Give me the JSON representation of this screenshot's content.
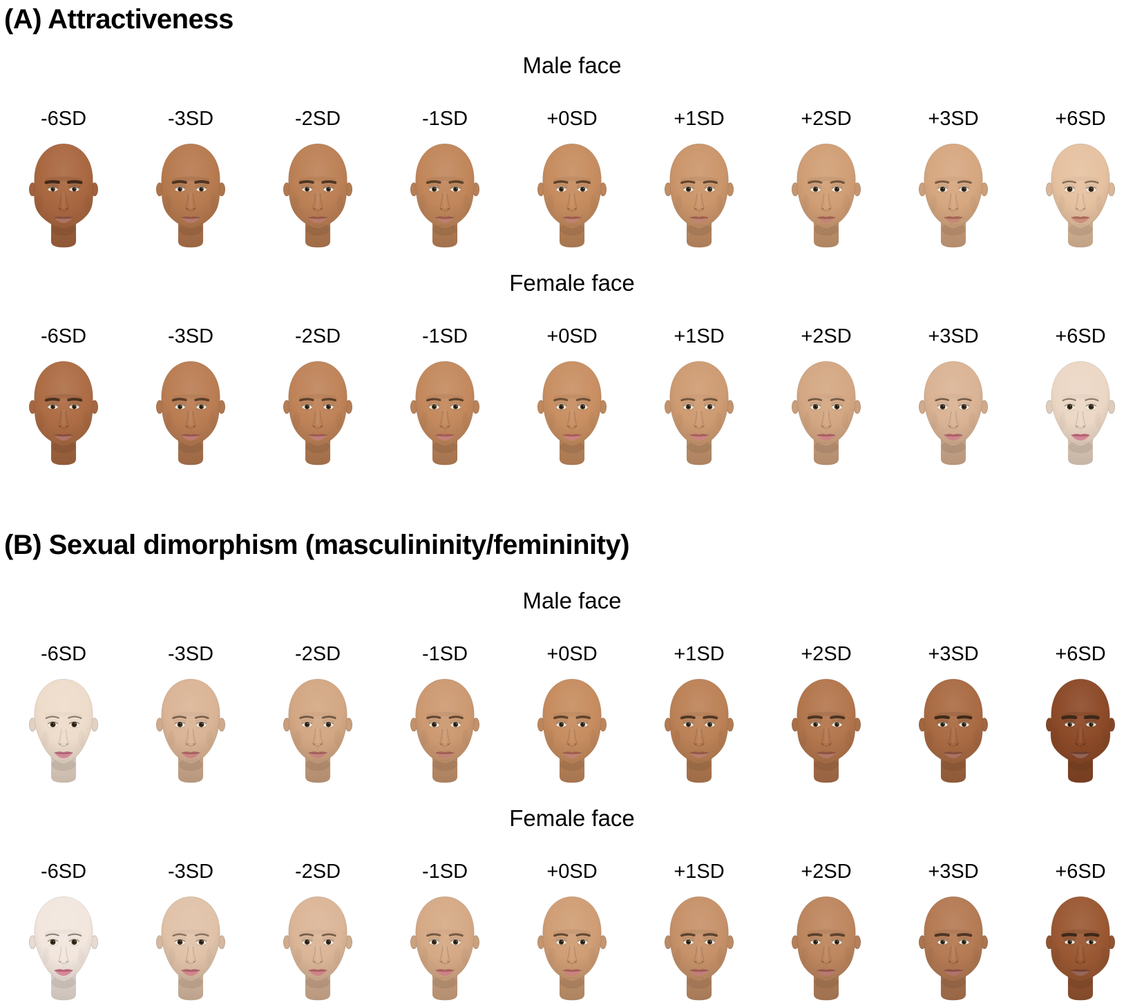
{
  "style": {
    "background": "#ffffff",
    "text_color": "#000000"
  },
  "panels": [
    {
      "id": "A",
      "title": "(A) Attractiveness",
      "rows": [
        {
          "header": "Male face",
          "faces": [
            {
              "label": "-6SD",
              "skin": "#a96740",
              "lip": "#9c5a49",
              "jaw": 0.95,
              "brow": 1.0,
              "eye": 0.25
            },
            {
              "label": "-3SD",
              "skin": "#b77a4f",
              "lip": "#a86250",
              "jaw": 0.8,
              "brow": 0.85,
              "eye": 0.38
            },
            {
              "label": "-2SD",
              "skin": "#bc8055",
              "lip": "#ac6451",
              "jaw": 0.72,
              "brow": 0.78,
              "eye": 0.44
            },
            {
              "label": "-1SD",
              "skin": "#c1865a",
              "lip": "#b06754",
              "jaw": 0.66,
              "brow": 0.7,
              "eye": 0.5
            },
            {
              "label": "+0SD",
              "skin": "#c68c5f",
              "lip": "#b46a56",
              "jaw": 0.6,
              "brow": 0.64,
              "eye": 0.56
            },
            {
              "label": "+1SD",
              "skin": "#cb956a",
              "lip": "#b66c58",
              "jaw": 0.54,
              "brow": 0.58,
              "eye": 0.62
            },
            {
              "label": "+2SD",
              "skin": "#d09e75",
              "lip": "#b96e5b",
              "jaw": 0.48,
              "brow": 0.52,
              "eye": 0.68
            },
            {
              "label": "+3SD",
              "skin": "#d6a780",
              "lip": "#bb715d",
              "jaw": 0.42,
              "brow": 0.46,
              "eye": 0.75
            },
            {
              "label": "+6SD",
              "skin": "#e5c1a0",
              "lip": "#c27864",
              "jaw": 0.28,
              "brow": 0.32,
              "eye": 0.95
            }
          ]
        },
        {
          "header": "Female face",
          "faces": [
            {
              "label": "-6SD",
              "skin": "#ad6c44",
              "lip": "#a05a4b",
              "jaw": 0.8,
              "brow": 0.85,
              "eye": 0.35
            },
            {
              "label": "-3SD",
              "skin": "#ba7d53",
              "lip": "#b06258",
              "jaw": 0.65,
              "brow": 0.72,
              "eye": 0.48
            },
            {
              "label": "-2SD",
              "skin": "#bf8358",
              "lip": "#b5655d",
              "jaw": 0.58,
              "brow": 0.65,
              "eye": 0.54
            },
            {
              "label": "-1SD",
              "skin": "#c3895d",
              "lip": "#ba6861",
              "jaw": 0.52,
              "brow": 0.58,
              "eye": 0.6
            },
            {
              "label": "+0SD",
              "skin": "#c88f62",
              "lip": "#c06b66",
              "jaw": 0.46,
              "brow": 0.52,
              "eye": 0.66
            },
            {
              "label": "+1SD",
              "skin": "#ce9b72",
              "lip": "#c26c6a",
              "jaw": 0.4,
              "brow": 0.46,
              "eye": 0.72
            },
            {
              "label": "+2SD",
              "skin": "#d4a783",
              "lip": "#c46c6e",
              "jaw": 0.35,
              "brow": 0.4,
              "eye": 0.78
            },
            {
              "label": "+3SD",
              "skin": "#dab394",
              "lip": "#c66d73",
              "jaw": 0.3,
              "brow": 0.34,
              "eye": 0.85
            },
            {
              "label": "+6SD",
              "skin": "#ecd7c5",
              "lip": "#cc6f80",
              "jaw": 0.18,
              "brow": 0.22,
              "eye": 1.05
            }
          ]
        }
      ]
    },
    {
      "id": "B",
      "title": "(B) Sexual dimorphism (masculininity/femininity)",
      "rows": [
        {
          "header": "Male face",
          "faces": [
            {
              "label": "-6SD",
              "skin": "#eedccb",
              "lip": "#cb7283",
              "jaw": 0.2,
              "brow": 0.2,
              "eye": 1.0
            },
            {
              "label": "-3SD",
              "skin": "#dab495",
              "lip": "#c06e6c",
              "jaw": 0.34,
              "brow": 0.34,
              "eye": 0.85
            },
            {
              "label": "-2SD",
              "skin": "#d3a783",
              "lip": "#bc6d65",
              "jaw": 0.44,
              "brow": 0.44,
              "eye": 0.75
            },
            {
              "label": "-1SD",
              "skin": "#cc9971",
              "lip": "#b86b5d",
              "jaw": 0.52,
              "brow": 0.54,
              "eye": 0.66
            },
            {
              "label": "+0SD",
              "skin": "#c68c5f",
              "lip": "#b46a56",
              "jaw": 0.6,
              "brow": 0.64,
              "eye": 0.58
            },
            {
              "label": "+1SD",
              "skin": "#bc8156",
              "lip": "#ab6450",
              "jaw": 0.7,
              "brow": 0.75,
              "eye": 0.52
            },
            {
              "label": "+2SD",
              "skin": "#b3764d",
              "lip": "#a15e4a",
              "jaw": 0.8,
              "brow": 0.85,
              "eye": 0.46
            },
            {
              "label": "+3SD",
              "skin": "#a96b43",
              "lip": "#985745",
              "jaw": 0.9,
              "brow": 0.95,
              "eye": 0.4
            },
            {
              "label": "+6SD",
              "skin": "#8c4a28",
              "lip": "#7c4534",
              "jaw": 1.05,
              "brow": 1.15,
              "eye": 0.28
            }
          ]
        },
        {
          "header": "Female face",
          "faces": [
            {
              "label": "-6SD",
              "skin": "#f2e6dd",
              "lip": "#cf7287",
              "jaw": 0.15,
              "brow": 0.18,
              "eye": 1.05
            },
            {
              "label": "-3SD",
              "skin": "#e0c2a8",
              "lip": "#c86e76",
              "jaw": 0.28,
              "brow": 0.3,
              "eye": 0.9
            },
            {
              "label": "-2SD",
              "skin": "#dbb597",
              "lip": "#c56d71",
              "jaw": 0.36,
              "brow": 0.4,
              "eye": 0.8
            },
            {
              "label": "-1SD",
              "skin": "#d5a985",
              "lip": "#c36c6c",
              "jaw": 0.44,
              "brow": 0.48,
              "eye": 0.72
            },
            {
              "label": "+0SD",
              "skin": "#cf9d74",
              "lip": "#c06b66",
              "jaw": 0.5,
              "brow": 0.55,
              "eye": 0.64
            },
            {
              "label": "+1SD",
              "skin": "#c69169",
              "lip": "#b6655f",
              "jaw": 0.58,
              "brow": 0.64,
              "eye": 0.58
            },
            {
              "label": "+2SD",
              "skin": "#bd865e",
              "lip": "#ac6057",
              "jaw": 0.66,
              "brow": 0.73,
              "eye": 0.52
            },
            {
              "label": "+3SD",
              "skin": "#b47a53",
              "lip": "#a25a50",
              "jaw": 0.76,
              "brow": 0.82,
              "eye": 0.46
            },
            {
              "label": "+6SD",
              "skin": "#9a5832",
              "lip": "#84493a",
              "jaw": 0.95,
              "brow": 1.0,
              "eye": 0.32
            }
          ]
        }
      ]
    }
  ]
}
